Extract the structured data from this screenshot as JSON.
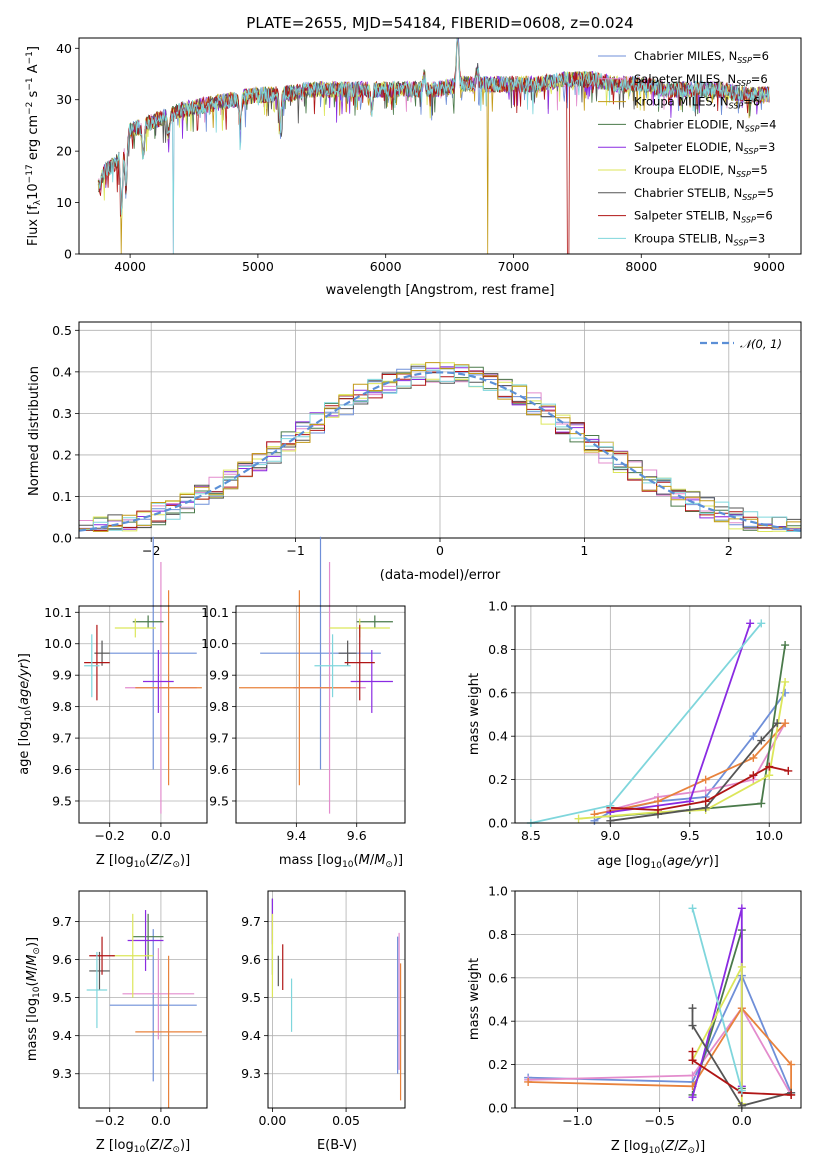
{
  "colors": [
    "#6f8fd8",
    "#e38ccd",
    "#c39a18",
    "#4a7a4a",
    "#8a2be2",
    "#dce65a",
    "#555555",
    "#b01515",
    "#7fd6dc",
    "#e8823c"
  ],
  "chart_data": [
    {
      "type": "line",
      "title": "PLATE=2655, MJD=54184, FIBERID=0608, z=0.024",
      "xlabel": "wavelength [Angstrom, rest frame]",
      "ylabel": "Flux [f_λ10⁻¹⁷ erg cm⁻² s⁻¹ A⁻¹]",
      "xlim": [
        3600,
        9250
      ],
      "ylim": [
        0,
        42
      ],
      "xticks": [
        4000,
        5000,
        6000,
        7000,
        8000,
        9000
      ],
      "yticks": [
        0,
        10,
        20,
        30,
        40
      ],
      "legend_position": "top-right",
      "series": [
        {
          "name": "Chabrier MILES, N_SSP=6"
        },
        {
          "name": "Salpeter MILES, N_SSP=6"
        },
        {
          "name": "Kroupa MILES, N_SSP=6"
        },
        {
          "name": "Chabrier ELODIE, N_SSP=4"
        },
        {
          "name": "Salpeter ELODIE, N_SSP=3"
        },
        {
          "name": "Kroupa ELODIE, N_SSP=5"
        },
        {
          "name": "Chabrier STELIB, N_SSP=5"
        },
        {
          "name": "Salpeter STELIB, N_SSP=6"
        },
        {
          "name": "Kroupa STELIB, N_SSP=3"
        }
      ],
      "continuum": {
        "x": [
          3750,
          3800,
          3900,
          3950,
          4000,
          4100,
          4200,
          4300,
          4400,
          4600,
          4800,
          5000,
          5200,
          5400,
          5600,
          5800,
          6000,
          6200,
          6400,
          6600,
          6800,
          7000,
          7200,
          7400,
          7600,
          7800,
          8000,
          8200,
          8400,
          8600,
          8800,
          9000
        ],
        "y": [
          13,
          16,
          18,
          22,
          24,
          25,
          26,
          27,
          28,
          29,
          30,
          31,
          31,
          32,
          32,
          32,
          32,
          32,
          32,
          33,
          33,
          33,
          33,
          34,
          34,
          33,
          33,
          32,
          32,
          32,
          31,
          31
        ]
      },
      "dropouts": [
        3930,
        4340,
        6800,
        7420
      ]
    },
    {
      "type": "histogram",
      "xlabel": "(data-model)/error",
      "ylabel": "Normed distribution",
      "xlim": [
        -2.5,
        2.5
      ],
      "ylim": [
        0,
        0.52
      ],
      "xticks": [
        -2,
        -1,
        0,
        1,
        2
      ],
      "yticks": [
        0,
        0.1,
        0.2,
        0.3,
        0.4,
        0.5
      ],
      "legend_position": "top-right",
      "legend_label": "𝒩(0, 1)",
      "reference_curve": "normal(0,1)"
    },
    {
      "type": "scatter",
      "xlabel": "Z [log₁₀(Z/Z☉)]",
      "ylabel": "age  [log₁₀(age/yr)]",
      "xlim": [
        -0.32,
        0.18
      ],
      "ylim": [
        9.43,
        10.12
      ],
      "xticks": [
        -0.2,
        0.0
      ],
      "yticks": [
        9.5,
        9.6,
        9.7,
        9.8,
        9.9,
        10.0,
        10.1
      ],
      "points": [
        {
          "x": -0.03,
          "y": 9.97,
          "xerr": 0.17,
          "yerr": 0.37
        },
        {
          "x": 0.0,
          "y": 9.86,
          "xerr": 0.14,
          "yerr": 0.4
        },
        {
          "x": 0.03,
          "y": 9.86,
          "xerr": 0.13,
          "yerr": 0.31
        },
        {
          "x": -0.05,
          "y": 10.07,
          "xerr": 0.06,
          "yerr": 0.02
        },
        {
          "x": -0.01,
          "y": 9.88,
          "xerr": 0.06,
          "yerr": 0.1
        },
        {
          "x": -0.1,
          "y": 10.05,
          "xerr": 0.08,
          "yerr": 0.03
        },
        {
          "x": -0.23,
          "y": 9.97,
          "xerr": 0.03,
          "yerr": 0.04
        },
        {
          "x": -0.25,
          "y": 9.94,
          "xerr": 0.05,
          "yerr": 0.12
        },
        {
          "x": -0.27,
          "y": 9.93,
          "xerr": 0.03,
          "yerr": 0.1
        }
      ]
    },
    {
      "type": "scatter",
      "xlabel": "mass [log₁₀(M/M☉)]",
      "ylabel": "",
      "xlim": [
        9.2,
        9.76
      ],
      "ylim": [
        9.43,
        10.12
      ],
      "xticks": [
        9.4,
        9.6
      ],
      "yticks": [
        9.5,
        9.6,
        9.7,
        9.8,
        9.9,
        10.0,
        10.1
      ],
      "points": [
        {
          "x": 9.48,
          "y": 9.97,
          "xerr": 0.2,
          "yerr": 0.37
        },
        {
          "x": 9.51,
          "y": 9.86,
          "xerr": 0.12,
          "yerr": 0.4
        },
        {
          "x": 9.41,
          "y": 9.86,
          "xerr": 0.2,
          "yerr": 0.31
        },
        {
          "x": 9.66,
          "y": 10.07,
          "xerr": 0.06,
          "yerr": 0.02
        },
        {
          "x": 9.65,
          "y": 9.88,
          "xerr": 0.07,
          "yerr": 0.1
        },
        {
          "x": 9.61,
          "y": 10.05,
          "xerr": 0.1,
          "yerr": 0.03
        },
        {
          "x": 9.57,
          "y": 9.97,
          "xerr": 0.03,
          "yerr": 0.04
        },
        {
          "x": 9.61,
          "y": 9.94,
          "xerr": 0.05,
          "yerr": 0.12
        },
        {
          "x": 9.52,
          "y": 9.93,
          "xerr": 0.06,
          "yerr": 0.1
        }
      ]
    },
    {
      "type": "line",
      "xlabel": "age  [log₁₀(age/yr)]",
      "ylabel": "mass weight",
      "xlim": [
        8.4,
        10.2
      ],
      "ylim": [
        0,
        1.0
      ],
      "xticks": [
        8.5,
        9.0,
        9.5,
        10.0
      ],
      "yticks": [
        0.0,
        0.2,
        0.4,
        0.6,
        0.8,
        1.0
      ],
      "series": [
        {
          "name": "Chabrier MILES",
          "x": [
            8.9,
            9.0,
            9.3,
            9.6,
            9.9,
            10.1
          ],
          "y": [
            0.01,
            0.05,
            0.1,
            0.12,
            0.4,
            0.6
          ]
        },
        {
          "name": "Salpeter MILES",
          "x": [
            9.0,
            9.3,
            9.6,
            9.9,
            10.1
          ],
          "y": [
            0.06,
            0.12,
            0.15,
            0.2,
            0.46
          ]
        },
        {
          "name": "Kroupa MILES",
          "x": [
            8.9,
            9.3,
            9.6,
            9.9,
            10.1
          ],
          "y": [
            0.04,
            0.1,
            0.2,
            0.3,
            0.46
          ]
        },
        {
          "name": "Chabrier ELODIE",
          "x": [
            9.0,
            9.5,
            9.95,
            10.1
          ],
          "y": [
            0.03,
            0.06,
            0.09,
            0.82
          ]
        },
        {
          "name": "Salpeter ELODIE",
          "x": [
            9.0,
            9.5,
            9.88
          ],
          "y": [
            0.05,
            0.1,
            0.92
          ]
        },
        {
          "name": "Kroupa ELODIE",
          "x": [
            8.8,
            9.3,
            9.6,
            10.0,
            10.1
          ],
          "y": [
            0.02,
            0.05,
            0.06,
            0.22,
            0.65
          ]
        },
        {
          "name": "Chabrier STELIB",
          "x": [
            9.0,
            9.3,
            9.6,
            9.95,
            10.05
          ],
          "y": [
            0.01,
            0.04,
            0.07,
            0.38,
            0.46
          ]
        },
        {
          "name": "Salpeter STELIB",
          "x": [
            9.0,
            9.3,
            9.6,
            9.9,
            10.0,
            10.12
          ],
          "y": [
            0.07,
            0.06,
            0.1,
            0.22,
            0.26,
            0.24
          ]
        },
        {
          "name": "Kroupa STELIB",
          "x": [
            8.5,
            9.0,
            9.95
          ],
          "y": [
            0.0,
            0.08,
            0.92
          ]
        }
      ]
    },
    {
      "type": "scatter",
      "xlabel": "Z [log₁₀(Z/Z☉)]",
      "ylabel": "mass [log₁₀(M/M☉)]",
      "xlim": [
        -0.32,
        0.18
      ],
      "ylim": [
        9.21,
        9.78
      ],
      "xticks": [
        -0.2,
        0.0
      ],
      "yticks": [
        9.3,
        9.4,
        9.5,
        9.6,
        9.7
      ],
      "points": [
        {
          "x": -0.03,
          "y": 9.48,
          "xerr": 0.17,
          "yerr": 0.2
        },
        {
          "x": -0.01,
          "y": 9.51,
          "xerr": 0.14,
          "yerr": 0.12
        },
        {
          "x": 0.03,
          "y": 9.41,
          "xerr": 0.13,
          "yerr": 0.2
        },
        {
          "x": -0.05,
          "y": 9.66,
          "xerr": 0.06,
          "yerr": 0.06
        },
        {
          "x": -0.06,
          "y": 9.65,
          "xerr": 0.07,
          "yerr": 0.08
        },
        {
          "x": -0.11,
          "y": 9.61,
          "xerr": 0.08,
          "yerr": 0.11
        },
        {
          "x": -0.24,
          "y": 9.57,
          "xerr": 0.04,
          "yerr": 0.05
        },
        {
          "x": -0.23,
          "y": 9.61,
          "xerr": 0.05,
          "yerr": 0.05
        },
        {
          "x": -0.25,
          "y": 9.52,
          "xerr": 0.04,
          "yerr": 0.1
        }
      ]
    },
    {
      "type": "scatter",
      "xlabel": "E(B-V)",
      "ylabel": "",
      "xlim": [
        -0.003,
        0.09
      ],
      "ylim": [
        9.21,
        9.78
      ],
      "xticks": [
        0.0,
        0.05
      ],
      "yticks": [
        9.3,
        9.4,
        9.5,
        9.6,
        9.7
      ],
      "points": [
        {
          "x": 0.085,
          "y": 9.48,
          "yerr": 0.18
        },
        {
          "x": 0.086,
          "y": 9.49,
          "yerr": 0.18
        },
        {
          "x": 0.087,
          "y": 9.41,
          "yerr": 0.18
        },
        {
          "x": 0.0,
          "y": 9.66,
          "yerr": 0.1
        },
        {
          "x": 0.0,
          "y": 9.7,
          "yerr": 0.06
        },
        {
          "x": 0.0,
          "y": 9.61,
          "yerr": 0.11
        },
        {
          "x": 0.004,
          "y": 9.57,
          "yerr": 0.04
        },
        {
          "x": 0.007,
          "y": 9.58,
          "yerr": 0.06
        },
        {
          "x": 0.013,
          "y": 9.48,
          "yerr": 0.07
        }
      ]
    },
    {
      "type": "line",
      "xlabel": "Z [log₁₀(Z/Z☉)]",
      "ylabel": "mass weight",
      "xlim": [
        -1.38,
        0.36
      ],
      "ylim": [
        0,
        1.0
      ],
      "xticks": [
        -1.0,
        -0.5,
        0.0
      ],
      "yticks": [
        0.0,
        0.2,
        0.4,
        0.6,
        0.8,
        1.0
      ],
      "series": [
        {
          "name": "Chabrier MILES",
          "x": [
            -1.3,
            -0.3,
            0.0,
            0.3
          ],
          "y": [
            0.14,
            0.12,
            0.61,
            0.07
          ]
        },
        {
          "name": "Salpeter MILES",
          "x": [
            -1.3,
            -0.3,
            0.0,
            0.3
          ],
          "y": [
            0.13,
            0.15,
            0.46,
            0.06
          ]
        },
        {
          "name": "Kroupa MILES",
          "x": [
            -1.3,
            -0.3,
            0.0,
            0.3,
            0.3
          ],
          "y": [
            0.12,
            0.1,
            0.46,
            0.2,
            0.06
          ]
        },
        {
          "name": "Chabrier ELODIE",
          "x": [
            -0.3,
            0.0,
            0.0
          ],
          "y": [
            0.06,
            0.82,
            0.09
          ]
        },
        {
          "name": "Salpeter ELODIE",
          "x": [
            -0.3,
            0.0,
            0.0
          ],
          "y": [
            0.05,
            0.92,
            0.1
          ]
        },
        {
          "name": "Kroupa ELODIE",
          "x": [
            -0.3,
            0.0,
            0.0
          ],
          "y": [
            0.22,
            0.65,
            0.02
          ]
        },
        {
          "name": "Chabrier STELIB",
          "x": [
            -0.3,
            -0.3,
            0.0,
            0.3
          ],
          "y": [
            0.46,
            0.38,
            0.01,
            0.07
          ]
        },
        {
          "name": "Salpeter STELIB",
          "x": [
            -0.3,
            -0.3,
            0.0,
            0.3
          ],
          "y": [
            0.26,
            0.22,
            0.07,
            0.06
          ]
        },
        {
          "name": "Kroupa STELIB",
          "x": [
            -0.3,
            0.0
          ],
          "y": [
            0.92,
            0.08
          ]
        }
      ]
    }
  ]
}
